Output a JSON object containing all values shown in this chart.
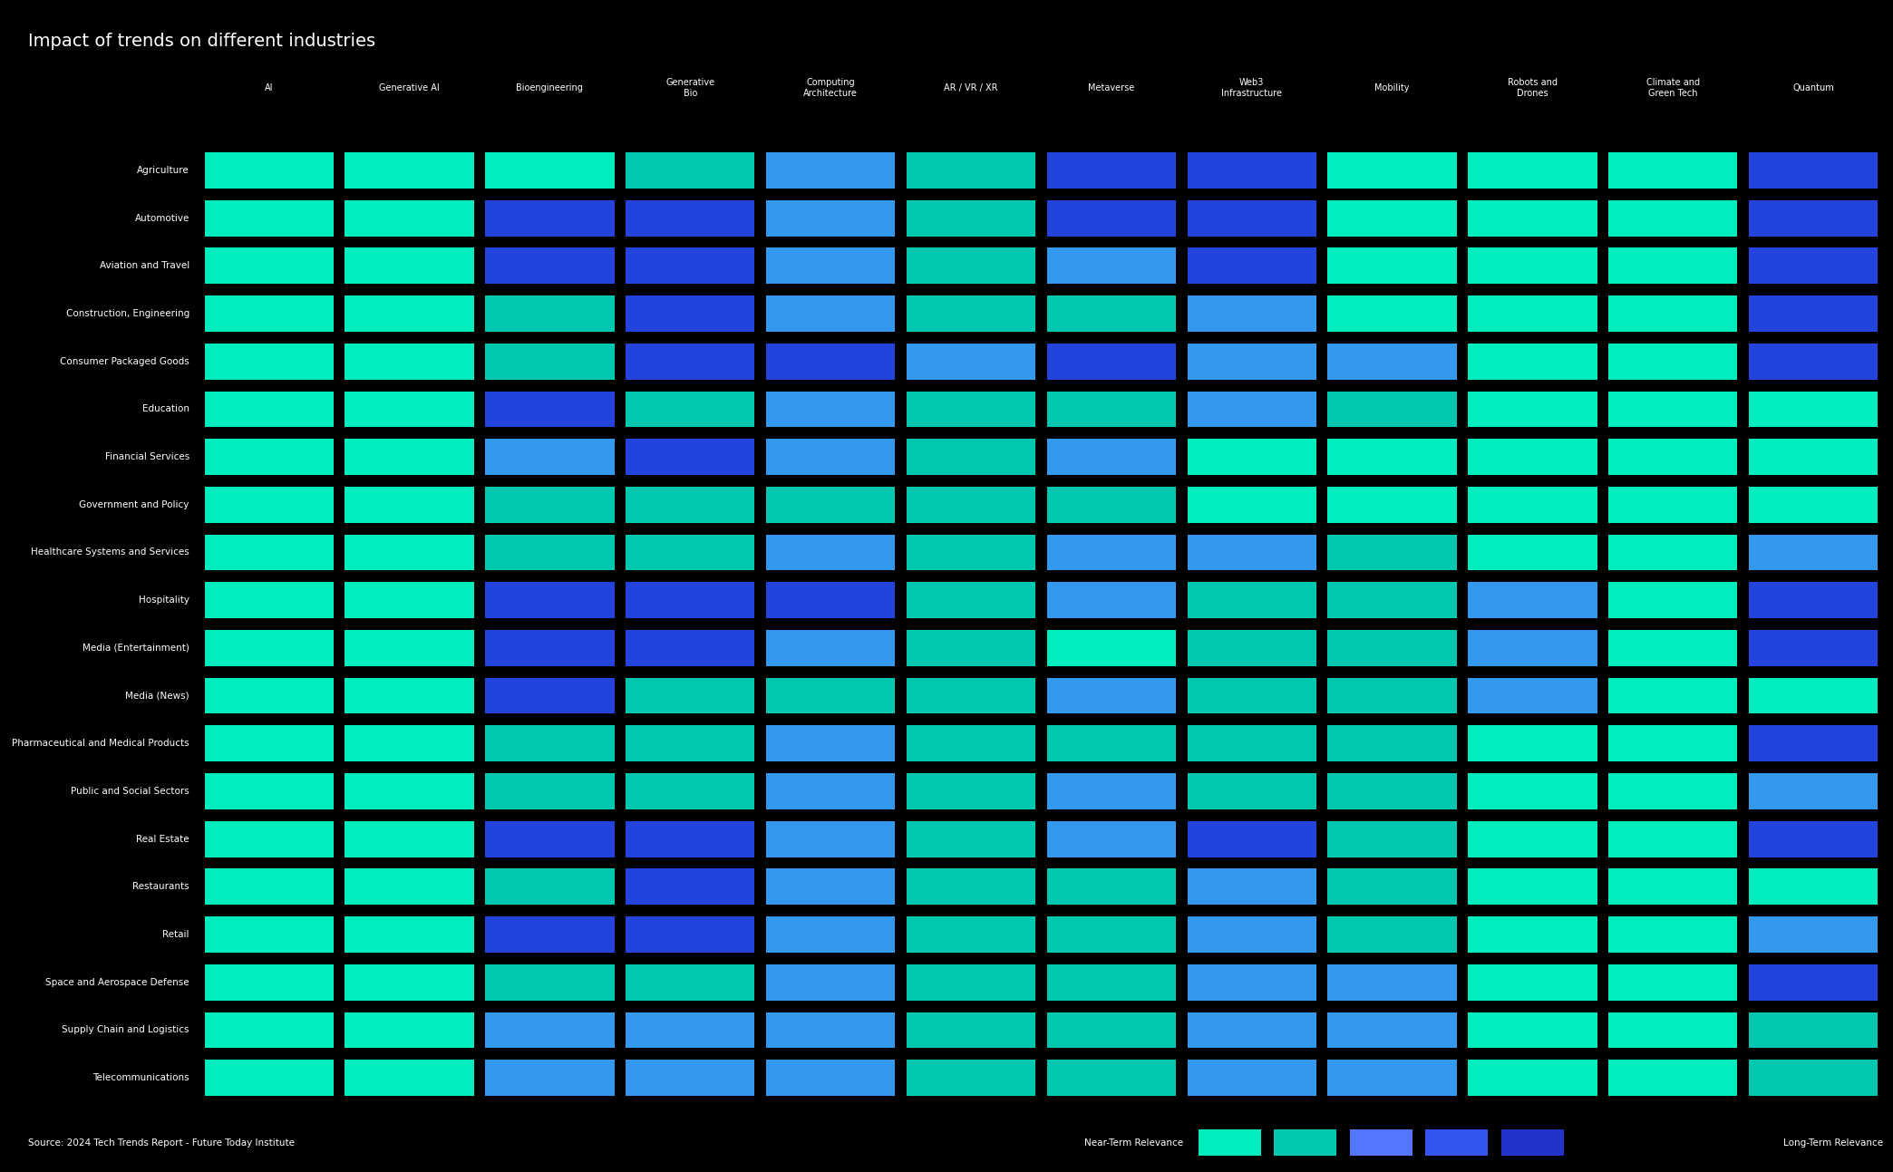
{
  "title": "Impact of trends on different industries",
  "background_color": "#000000",
  "text_color": "#ffffff",
  "colors": {
    "C1": "#00EDC0",
    "C2": "#00C8B0",
    "B1": "#2244DD",
    "B2": "#3399EE",
    "B3": "#5577FF"
  },
  "columns": [
    "AI",
    "Generative AI",
    "Bioengineering",
    "Generative\nBio",
    "Computing\nArchitecture",
    "AR / VR / XR",
    "Metaverse",
    "Web3\nInfrastructure",
    "Mobility",
    "Robots and\nDrones",
    "Climate and\nGreen Tech",
    "Quantum"
  ],
  "rows": [
    "Agriculture",
    "Automotive",
    "Aviation and Travel",
    "Construction, Engineering",
    "Consumer Packaged Goods",
    "Education",
    "Financial Services",
    "Government and Policy",
    "Healthcare Systems and Services",
    "Hospitality",
    "Media (Entertainment)",
    "Media (News)",
    "Pharmaceutical and Medical Products",
    "Public and Social Sectors",
    "Real Estate",
    "Restaurants",
    "Retail",
    "Space and Aerospace Defense",
    "Supply Chain and Logistics",
    "Telecommunications"
  ],
  "source_text": "Source: 2024 Tech Trends Report - Future Today Institute",
  "legend_near": "Near-Term Relevance",
  "legend_long": "Long-Term Relevance",
  "cell_colors": [
    [
      "C1",
      "C1",
      "C1",
      "C2",
      "B2",
      "C2",
      "B1",
      "B1",
      "C1",
      "C1",
      "C1",
      "B1"
    ],
    [
      "C1",
      "C1",
      "B1",
      "B1",
      "B2",
      "C2",
      "B1",
      "B1",
      "C1",
      "C1",
      "C1",
      "B1"
    ],
    [
      "C1",
      "C1",
      "B1",
      "B1",
      "B2",
      "C2",
      "B2",
      "B1",
      "C1",
      "C1",
      "C1",
      "B1"
    ],
    [
      "C1",
      "C1",
      "C2",
      "B1",
      "B2",
      "C2",
      "C2",
      "B2",
      "C1",
      "C1",
      "C1",
      "B1"
    ],
    [
      "C1",
      "C1",
      "C2",
      "B1",
      "B1",
      "B2",
      "B1",
      "B2",
      "B2",
      "C1",
      "C1",
      "B1"
    ],
    [
      "C1",
      "C1",
      "B1",
      "C2",
      "B2",
      "C2",
      "C2",
      "B2",
      "C2",
      "C1",
      "C1",
      "C1"
    ],
    [
      "C1",
      "C1",
      "B2",
      "B1",
      "B2",
      "C2",
      "B2",
      "C1",
      "C1",
      "C1",
      "C1",
      "C1"
    ],
    [
      "C1",
      "C1",
      "C2",
      "C2",
      "C2",
      "C2",
      "C2",
      "C1",
      "C1",
      "C1",
      "C1",
      "C1"
    ],
    [
      "C1",
      "C1",
      "C2",
      "C2",
      "B2",
      "C2",
      "B2",
      "B2",
      "C2",
      "C1",
      "C1",
      "B2"
    ],
    [
      "C1",
      "C1",
      "B1",
      "B1",
      "B1",
      "C2",
      "B2",
      "C2",
      "C2",
      "B2",
      "C1",
      "B1"
    ],
    [
      "C1",
      "C1",
      "B1",
      "B1",
      "B2",
      "C2",
      "C1",
      "C2",
      "C2",
      "B2",
      "C1",
      "B1"
    ],
    [
      "C1",
      "C1",
      "B1",
      "C2",
      "C2",
      "C2",
      "B2",
      "C2",
      "C2",
      "B2",
      "C1",
      "C1"
    ],
    [
      "C1",
      "C1",
      "C2",
      "C2",
      "B2",
      "C2",
      "C2",
      "C2",
      "C2",
      "C1",
      "C1",
      "B1"
    ],
    [
      "C1",
      "C1",
      "C2",
      "C2",
      "B2",
      "C2",
      "B2",
      "C2",
      "C2",
      "C1",
      "C1",
      "B2"
    ],
    [
      "C1",
      "C1",
      "B1",
      "B1",
      "B2",
      "C2",
      "B2",
      "B1",
      "C2",
      "C1",
      "C1",
      "B1"
    ],
    [
      "C1",
      "C1",
      "C2",
      "B1",
      "B2",
      "C2",
      "C2",
      "B2",
      "C2",
      "C1",
      "C1",
      "C1"
    ],
    [
      "C1",
      "C1",
      "B1",
      "B1",
      "B2",
      "C2",
      "C2",
      "B2",
      "C2",
      "C1",
      "C1",
      "B2"
    ],
    [
      "C1",
      "C1",
      "C2",
      "C2",
      "B2",
      "C2",
      "C2",
      "B2",
      "B2",
      "C1",
      "C1",
      "B1"
    ],
    [
      "C1",
      "C1",
      "B2",
      "B2",
      "B2",
      "C2",
      "C2",
      "B2",
      "B2",
      "C1",
      "C1",
      "C2"
    ],
    [
      "C1",
      "C1",
      "B2",
      "B2",
      "B2",
      "C2",
      "C2",
      "B2",
      "B2",
      "C1",
      "C1",
      "C2"
    ]
  ],
  "legend_colors": [
    "#00EDC0",
    "#00C8B0",
    "#5577FF",
    "#3355EE",
    "#2233CC"
  ]
}
